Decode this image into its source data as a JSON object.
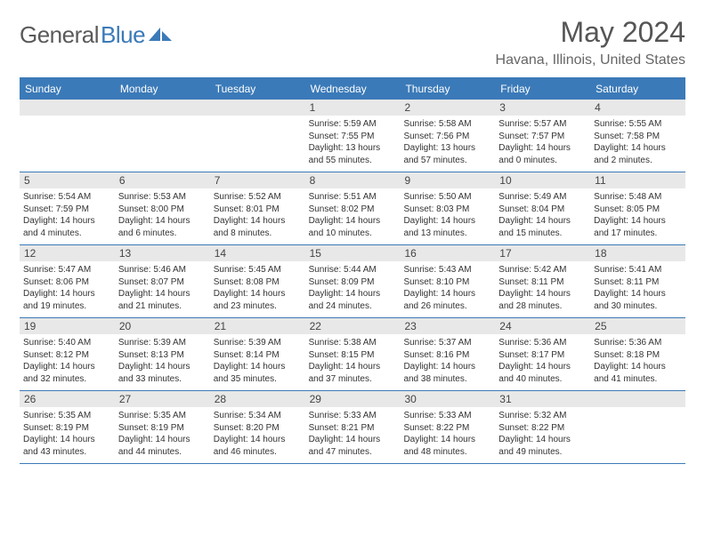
{
  "logo": {
    "gen": "General",
    "blue": "Blue"
  },
  "title": "May 2024",
  "location": "Havana, Illinois, United States",
  "colors": {
    "brand_blue": "#3b7ab8",
    "header_text": "#ffffff",
    "daynum_bg": "#e8e8e8",
    "body_bg": "#ffffff",
    "text": "#333333",
    "title_text": "#555555",
    "logo_gray": "#5a5a5a"
  },
  "typography": {
    "title_fontsize": 32,
    "location_fontsize": 16,
    "weekday_fontsize": 12,
    "daynum_fontsize": 12,
    "body_fontsize": 10
  },
  "weekdays": [
    "Sunday",
    "Monday",
    "Tuesday",
    "Wednesday",
    "Thursday",
    "Friday",
    "Saturday"
  ],
  "weeks": [
    [
      null,
      null,
      null,
      {
        "n": "1",
        "sr": "5:59 AM",
        "ss": "7:55 PM",
        "dh": "13",
        "dm": "55"
      },
      {
        "n": "2",
        "sr": "5:58 AM",
        "ss": "7:56 PM",
        "dh": "13",
        "dm": "57"
      },
      {
        "n": "3",
        "sr": "5:57 AM",
        "ss": "7:57 PM",
        "dh": "14",
        "dm": "0"
      },
      {
        "n": "4",
        "sr": "5:55 AM",
        "ss": "7:58 PM",
        "dh": "14",
        "dm": "2"
      }
    ],
    [
      {
        "n": "5",
        "sr": "5:54 AM",
        "ss": "7:59 PM",
        "dh": "14",
        "dm": "4"
      },
      {
        "n": "6",
        "sr": "5:53 AM",
        "ss": "8:00 PM",
        "dh": "14",
        "dm": "6"
      },
      {
        "n": "7",
        "sr": "5:52 AM",
        "ss": "8:01 PM",
        "dh": "14",
        "dm": "8"
      },
      {
        "n": "8",
        "sr": "5:51 AM",
        "ss": "8:02 PM",
        "dh": "14",
        "dm": "10"
      },
      {
        "n": "9",
        "sr": "5:50 AM",
        "ss": "8:03 PM",
        "dh": "14",
        "dm": "13"
      },
      {
        "n": "10",
        "sr": "5:49 AM",
        "ss": "8:04 PM",
        "dh": "14",
        "dm": "15"
      },
      {
        "n": "11",
        "sr": "5:48 AM",
        "ss": "8:05 PM",
        "dh": "14",
        "dm": "17"
      }
    ],
    [
      {
        "n": "12",
        "sr": "5:47 AM",
        "ss": "8:06 PM",
        "dh": "14",
        "dm": "19"
      },
      {
        "n": "13",
        "sr": "5:46 AM",
        "ss": "8:07 PM",
        "dh": "14",
        "dm": "21"
      },
      {
        "n": "14",
        "sr": "5:45 AM",
        "ss": "8:08 PM",
        "dh": "14",
        "dm": "23"
      },
      {
        "n": "15",
        "sr": "5:44 AM",
        "ss": "8:09 PM",
        "dh": "14",
        "dm": "24"
      },
      {
        "n": "16",
        "sr": "5:43 AM",
        "ss": "8:10 PM",
        "dh": "14",
        "dm": "26"
      },
      {
        "n": "17",
        "sr": "5:42 AM",
        "ss": "8:11 PM",
        "dh": "14",
        "dm": "28"
      },
      {
        "n": "18",
        "sr": "5:41 AM",
        "ss": "8:11 PM",
        "dh": "14",
        "dm": "30"
      }
    ],
    [
      {
        "n": "19",
        "sr": "5:40 AM",
        "ss": "8:12 PM",
        "dh": "14",
        "dm": "32"
      },
      {
        "n": "20",
        "sr": "5:39 AM",
        "ss": "8:13 PM",
        "dh": "14",
        "dm": "33"
      },
      {
        "n": "21",
        "sr": "5:39 AM",
        "ss": "8:14 PM",
        "dh": "14",
        "dm": "35"
      },
      {
        "n": "22",
        "sr": "5:38 AM",
        "ss": "8:15 PM",
        "dh": "14",
        "dm": "37"
      },
      {
        "n": "23",
        "sr": "5:37 AM",
        "ss": "8:16 PM",
        "dh": "14",
        "dm": "38"
      },
      {
        "n": "24",
        "sr": "5:36 AM",
        "ss": "8:17 PM",
        "dh": "14",
        "dm": "40"
      },
      {
        "n": "25",
        "sr": "5:36 AM",
        "ss": "8:18 PM",
        "dh": "14",
        "dm": "41"
      }
    ],
    [
      {
        "n": "26",
        "sr": "5:35 AM",
        "ss": "8:19 PM",
        "dh": "14",
        "dm": "43"
      },
      {
        "n": "27",
        "sr": "5:35 AM",
        "ss": "8:19 PM",
        "dh": "14",
        "dm": "44"
      },
      {
        "n": "28",
        "sr": "5:34 AM",
        "ss": "8:20 PM",
        "dh": "14",
        "dm": "46"
      },
      {
        "n": "29",
        "sr": "5:33 AM",
        "ss": "8:21 PM",
        "dh": "14",
        "dm": "47"
      },
      {
        "n": "30",
        "sr": "5:33 AM",
        "ss": "8:22 PM",
        "dh": "14",
        "dm": "48"
      },
      {
        "n": "31",
        "sr": "5:32 AM",
        "ss": "8:22 PM",
        "dh": "14",
        "dm": "49"
      },
      null
    ]
  ],
  "labels": {
    "sunrise": "Sunrise:",
    "sunset": "Sunset:",
    "daylight_pre": "Daylight:",
    "hours_word": "hours",
    "and_word": "and",
    "minutes_word": "minutes."
  }
}
